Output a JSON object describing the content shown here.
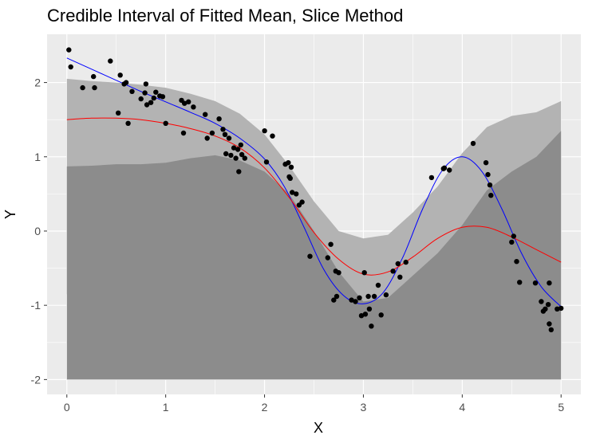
{
  "chart_data": {
    "type": "scatter",
    "title": "Credible Interval of Fitted Mean, Slice Method",
    "xlabel": "X",
    "ylabel": "Y",
    "xlim": [
      -0.2,
      5.2
    ],
    "ylim": [
      -2.2,
      2.65
    ],
    "x_ticks": [
      0,
      1,
      2,
      3,
      4,
      5
    ],
    "x_tick_labels": [
      "0",
      "1",
      "2",
      "3",
      "4",
      "5"
    ],
    "y_ticks": [
      -2,
      -1,
      0,
      1,
      2
    ],
    "y_tick_labels": [
      "-2",
      "-1",
      "0",
      "1",
      "2"
    ],
    "grid": true,
    "legend": "none",
    "colors": {
      "panel": "#ebebeb",
      "grid": "#ffffff",
      "band_outer": "#b3b3b3",
      "band_inner": "#8c8c8c",
      "true_mean": "#0000ff",
      "fitted_mean": "#ff0000",
      "points": "#000000"
    },
    "bands": [
      {
        "x": [
          0,
          0.25,
          0.5,
          0.75,
          1,
          1.25,
          1.5,
          1.75,
          2,
          2.25,
          2.5,
          2.75,
          3,
          3.25,
          3.5,
          3.75,
          4,
          4.25,
          4.5,
          4.75,
          5
        ],
        "upper": [
          2.05,
          2.02,
          2.0,
          1.97,
          1.93,
          1.85,
          1.75,
          1.58,
          1.3,
          0.88,
          0.4,
          0.0,
          -0.1,
          -0.05,
          0.25,
          0.6,
          1.05,
          1.4,
          1.55,
          1.6,
          1.75
        ],
        "lower": [
          -0.85,
          -0.95,
          -1.05,
          -1.12,
          -1.18,
          -1.25,
          -1.3,
          -1.35,
          -1.38,
          -1.38,
          -1.4,
          -1.35,
          -1.32,
          -1.2,
          -1.02,
          -0.98,
          -0.95,
          -1.02,
          -1.15,
          -1.35,
          -1.6
        ]
      },
      {
        "x": [
          0,
          0.25,
          0.5,
          0.75,
          1,
          1.25,
          1.5,
          1.75,
          2,
          2.25,
          2.5,
          2.75,
          3,
          3.25,
          3.5,
          3.75,
          4,
          4.25,
          4.5,
          4.75,
          5
        ],
        "upper": [
          0.87,
          0.88,
          0.9,
          0.9,
          0.92,
          0.98,
          1.02,
          0.95,
          0.8,
          0.5,
          0.0,
          -0.55,
          -0.95,
          -0.9,
          -0.6,
          -0.3,
          0.08,
          0.55,
          0.8,
          1.0,
          1.35
        ],
        "lower": [
          -2.0,
          -2.0,
          -2.0,
          -2.0,
          -2.0,
          -2.0,
          -2.0,
          -2.0,
          -2.0,
          -2.0,
          -2.0,
          -2.0,
          -2.0,
          -2.0,
          -2.0,
          -2.0,
          -2.0,
          -2.0,
          -2.0,
          -2.0,
          -2.0
        ]
      }
    ],
    "series": [
      {
        "x": [
          0,
          0.25,
          0.5,
          0.75,
          1,
          1.25,
          1.5,
          1.75,
          2,
          2.2,
          2.4,
          2.6,
          2.8,
          3,
          3.2,
          3.4,
          3.6,
          3.8,
          4,
          4.2,
          4.4,
          4.6,
          4.8,
          5
        ],
        "y": [
          2.33,
          2.18,
          2.03,
          1.88,
          1.74,
          1.6,
          1.45,
          1.25,
          0.97,
          0.6,
          0.05,
          -0.52,
          -0.87,
          -0.98,
          -0.83,
          -0.35,
          0.3,
          0.82,
          1.0,
          0.8,
          0.3,
          -0.3,
          -0.75,
          -1.02
        ]
      },
      {
        "x": [
          0,
          0.25,
          0.5,
          0.75,
          1,
          1.25,
          1.5,
          1.75,
          2,
          2.25,
          2.5,
          2.75,
          3,
          3.25,
          3.5,
          3.75,
          4,
          4.25,
          4.5,
          4.75,
          5
        ],
        "y": [
          1.5,
          1.52,
          1.52,
          1.5,
          1.45,
          1.38,
          1.28,
          1.12,
          0.85,
          0.45,
          -0.02,
          -0.38,
          -0.58,
          -0.55,
          -0.35,
          -0.1,
          0.05,
          0.05,
          -0.08,
          -0.25,
          -0.42
        ]
      }
    ],
    "points": [
      [
        0.02,
        2.44
      ],
      [
        0.04,
        2.21
      ],
      [
        0.16,
        1.93
      ],
      [
        0.27,
        2.08
      ],
      [
        0.28,
        1.93
      ],
      [
        0.44,
        2.29
      ],
      [
        0.52,
        1.59
      ],
      [
        0.54,
        2.1
      ],
      [
        0.58,
        1.98
      ],
      [
        0.6,
        2.0
      ],
      [
        0.62,
        1.45
      ],
      [
        0.66,
        1.88
      ],
      [
        0.75,
        1.78
      ],
      [
        0.79,
        1.86
      ],
      [
        0.8,
        1.98
      ],
      [
        0.81,
        1.7
      ],
      [
        0.85,
        1.73
      ],
      [
        0.88,
        1.79
      ],
      [
        0.9,
        1.87
      ],
      [
        0.94,
        1.82
      ],
      [
        0.97,
        1.81
      ],
      [
        1.0,
        1.45
      ],
      [
        1.16,
        1.76
      ],
      [
        1.18,
        1.32
      ],
      [
        1.19,
        1.72
      ],
      [
        1.23,
        1.74
      ],
      [
        1.28,
        1.67
      ],
      [
        1.4,
        1.57
      ],
      [
        1.42,
        1.25
      ],
      [
        1.47,
        1.32
      ],
      [
        1.54,
        1.51
      ],
      [
        1.58,
        1.37
      ],
      [
        1.6,
        1.3
      ],
      [
        1.61,
        1.04
      ],
      [
        1.64,
        1.25
      ],
      [
        1.66,
        1.02
      ],
      [
        1.69,
        1.12
      ],
      [
        1.71,
        0.98
      ],
      [
        1.73,
        1.1
      ],
      [
        1.74,
        0.8
      ],
      [
        1.76,
        1.16
      ],
      [
        1.77,
        1.03
      ],
      [
        1.8,
        0.98
      ],
      [
        2.0,
        1.35
      ],
      [
        2.02,
        0.93
      ],
      [
        2.08,
        1.28
      ],
      [
        2.21,
        0.9
      ],
      [
        2.24,
        0.92
      ],
      [
        2.25,
        0.73
      ],
      [
        2.26,
        0.71
      ],
      [
        2.27,
        0.86
      ],
      [
        2.28,
        0.52
      ],
      [
        2.32,
        0.5
      ],
      [
        2.35,
        0.35
      ],
      [
        2.38,
        0.39
      ],
      [
        2.46,
        -0.34
      ],
      [
        2.64,
        -0.36
      ],
      [
        2.67,
        -0.18
      ],
      [
        2.7,
        -0.93
      ],
      [
        2.72,
        -0.54
      ],
      [
        2.73,
        -0.88
      ],
      [
        2.75,
        -0.56
      ],
      [
        2.88,
        -0.93
      ],
      [
        2.92,
        -0.95
      ],
      [
        2.96,
        -0.9
      ],
      [
        2.98,
        -1.14
      ],
      [
        3.01,
        -0.56
      ],
      [
        3.02,
        -1.12
      ],
      [
        3.05,
        -0.88
      ],
      [
        3.06,
        -1.05
      ],
      [
        3.08,
        -1.28
      ],
      [
        3.11,
        -0.88
      ],
      [
        3.15,
        -0.73
      ],
      [
        3.18,
        -1.13
      ],
      [
        3.23,
        -0.86
      ],
      [
        3.3,
        -0.54
      ],
      [
        3.35,
        -0.44
      ],
      [
        3.37,
        -0.62
      ],
      [
        3.43,
        -0.42
      ],
      [
        3.69,
        0.72
      ],
      [
        3.81,
        0.84
      ],
      [
        3.82,
        0.85
      ],
      [
        3.87,
        0.82
      ],
      [
        4.11,
        1.18
      ],
      [
        4.24,
        0.92
      ],
      [
        4.26,
        0.76
      ],
      [
        4.29,
        0.48
      ],
      [
        4.28,
        0.62
      ],
      [
        4.5,
        -0.15
      ],
      [
        4.52,
        -0.07
      ],
      [
        4.55,
        -0.41
      ],
      [
        4.58,
        -0.69
      ],
      [
        4.74,
        -0.7
      ],
      [
        4.8,
        -0.95
      ],
      [
        4.82,
        -1.08
      ],
      [
        4.84,
        -1.05
      ],
      [
        4.88,
        -1.25
      ],
      [
        4.87,
        -0.99
      ],
      [
        4.88,
        -0.7
      ],
      [
        4.9,
        -1.33
      ],
      [
        4.96,
        -1.05
      ],
      [
        5.0,
        -1.04
      ]
    ]
  }
}
